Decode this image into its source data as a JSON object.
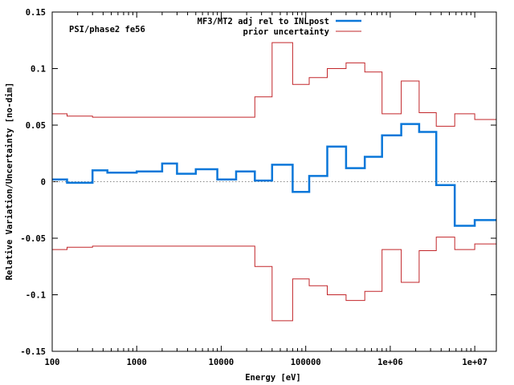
{
  "chart_data": {
    "type": "line",
    "annotation": "PSI/phase2 fe56",
    "xlabel": "Energy [eV]",
    "ylabel": "Relative Variation/Uncertainty [no-dim]",
    "xscale": "log",
    "xlim": [
      100,
      18000000
    ],
    "ylim": [
      -0.15,
      0.15
    ],
    "grid": false,
    "legend_position": "top-right",
    "x_ticks": [
      {
        "value": 100,
        "label": "100"
      },
      {
        "value": 1000,
        "label": "1000"
      },
      {
        "value": 10000,
        "label": "10000"
      },
      {
        "value": 100000,
        "label": "100000"
      },
      {
        "value": 1000000,
        "label": "1e+06"
      },
      {
        "value": 10000000,
        "label": "1e+07"
      }
    ],
    "y_ticks": [
      {
        "value": 0.15,
        "label": "0.15"
      },
      {
        "value": 0.1,
        "label": "0.1"
      },
      {
        "value": 0.05,
        "label": "0.05"
      },
      {
        "value": 0,
        "label": "0"
      },
      {
        "value": -0.05,
        "label": "-0.05"
      },
      {
        "value": -0.1,
        "label": "-0.1"
      },
      {
        "value": -0.15,
        "label": "-0.15"
      }
    ],
    "zero_line": true,
    "series": [
      {
        "name": "MF3/MT2 adj rel to INLpost",
        "color": "#0a77d9",
        "style": "steps",
        "bins": [
          {
            "x0": 100,
            "x1": 150,
            "y": 0.002
          },
          {
            "x0": 150,
            "x1": 300,
            "y": -0.001
          },
          {
            "x0": 300,
            "x1": 450,
            "y": 0.01
          },
          {
            "x0": 450,
            "x1": 1000,
            "y": 0.008
          },
          {
            "x0": 1000,
            "x1": 2000,
            "y": 0.009
          },
          {
            "x0": 2000,
            "x1": 3000,
            "y": 0.016
          },
          {
            "x0": 3000,
            "x1": 5000,
            "y": 0.007
          },
          {
            "x0": 5000,
            "x1": 9000,
            "y": 0.011
          },
          {
            "x0": 9000,
            "x1": 15000,
            "y": 0.002
          },
          {
            "x0": 15000,
            "x1": 25000,
            "y": 0.009
          },
          {
            "x0": 25000,
            "x1": 40000,
            "y": 0.001
          },
          {
            "x0": 40000,
            "x1": 70000,
            "y": 0.015
          },
          {
            "x0": 70000,
            "x1": 110000,
            "y": -0.009
          },
          {
            "x0": 110000,
            "x1": 180000,
            "y": 0.005
          },
          {
            "x0": 180000,
            "x1": 300000,
            "y": 0.031
          },
          {
            "x0": 300000,
            "x1": 500000,
            "y": 0.012
          },
          {
            "x0": 500000,
            "x1": 800000,
            "y": 0.022
          },
          {
            "x0": 800000,
            "x1": 1350000,
            "y": 0.041
          },
          {
            "x0": 1350000,
            "x1": 2200000,
            "y": 0.051
          },
          {
            "x0": 2200000,
            "x1": 3500000,
            "y": 0.044
          },
          {
            "x0": 3500000,
            "x1": 5800000,
            "y": -0.003
          },
          {
            "x0": 5800000,
            "x1": 10000000,
            "y": -0.039
          },
          {
            "x0": 10000000,
            "x1": 18000000,
            "y": -0.034
          }
        ]
      },
      {
        "name": "prior uncertainty",
        "color": "#c2262a",
        "style": "steps",
        "mirror": true,
        "bins": [
          {
            "x0": 100,
            "x1": 150,
            "y": 0.06
          },
          {
            "x0": 150,
            "x1": 300,
            "y": 0.058
          },
          {
            "x0": 300,
            "x1": 25000,
            "y": 0.057
          },
          {
            "x0": 25000,
            "x1": 40000,
            "y": 0.075
          },
          {
            "x0": 40000,
            "x1": 70000,
            "y": 0.123
          },
          {
            "x0": 70000,
            "x1": 110000,
            "y": 0.086
          },
          {
            "x0": 110000,
            "x1": 180000,
            "y": 0.092
          },
          {
            "x0": 180000,
            "x1": 300000,
            "y": 0.1
          },
          {
            "x0": 300000,
            "x1": 500000,
            "y": 0.105
          },
          {
            "x0": 500000,
            "x1": 800000,
            "y": 0.097
          },
          {
            "x0": 800000,
            "x1": 1350000,
            "y": 0.06
          },
          {
            "x0": 1350000,
            "x1": 2200000,
            "y": 0.089
          },
          {
            "x0": 2200000,
            "x1": 3500000,
            "y": 0.061
          },
          {
            "x0": 3500000,
            "x1": 5800000,
            "y": 0.049
          },
          {
            "x0": 5800000,
            "x1": 10000000,
            "y": 0.06
          },
          {
            "x0": 10000000,
            "x1": 18000000,
            "y": 0.055
          }
        ]
      }
    ]
  }
}
